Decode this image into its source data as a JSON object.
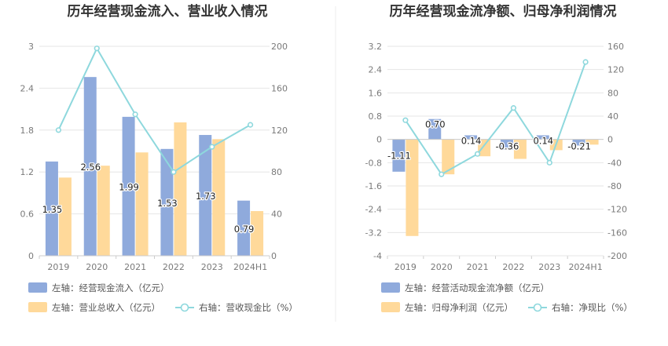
{
  "panels": [
    {
      "title": "历年经营现金流入、营业收入情况",
      "legend": [
        {
          "label": "左轴：经营现金流入（亿元）",
          "kind": "bar",
          "color": "#8faadc"
        },
        {
          "label": "左轴：营业总收入（亿元）",
          "kind": "bar",
          "color": "#ffd99a"
        },
        {
          "label": "右轴：营收现金比（%）",
          "kind": "line",
          "color": "#8ed8dd"
        }
      ]
    },
    {
      "title": "历年经营现金流净额、归母净利润情况",
      "legend": [
        {
          "label": "左轴：经营活动现金流净额（亿元）",
          "kind": "bar",
          "color": "#8faadc"
        },
        {
          "label": "左轴：归母净利润（亿元）",
          "kind": "bar",
          "color": "#ffd99a"
        },
        {
          "label": "右轴：净现比（%）",
          "kind": "line",
          "color": "#8ed8dd"
        }
      ]
    }
  ],
  "chart_data": [
    {
      "type": "bar",
      "title": "历年经营现金流入、营业收入情况",
      "categories": [
        "2019",
        "2020",
        "2021",
        "2022",
        "2023",
        "2024H1"
      ],
      "left_axis": {
        "ticks": [
          "0",
          "0.6",
          "1.2",
          "1.8",
          "2.4",
          "3"
        ],
        "ylim": [
          0,
          3
        ]
      },
      "right_axis": {
        "ticks": [
          "0",
          "40",
          "80",
          "120",
          "160",
          "200"
        ],
        "ylim": [
          0,
          200
        ]
      },
      "series": [
        {
          "name": "左轴：经营现金流入（亿元）",
          "axis": "left",
          "type": "bar",
          "color": "#8faadc",
          "values": [
            1.35,
            2.56,
            1.99,
            1.53,
            1.73,
            0.79
          ],
          "labels": [
            "1.35",
            "2.56",
            "1.99",
            "1.53",
            "1.73",
            "0.79"
          ]
        },
        {
          "name": "左轴：营业总收入（亿元）",
          "axis": "left",
          "type": "bar",
          "color": "#ffd99a",
          "values": [
            1.12,
            1.29,
            1.48,
            1.91,
            1.67,
            0.64
          ]
        },
        {
          "name": "右轴：营收现金比（%）",
          "axis": "right",
          "type": "line",
          "color": "#8ed8dd",
          "values": [
            120,
            198,
            135,
            80,
            104,
            125
          ]
        }
      ]
    },
    {
      "type": "bar",
      "title": "历年经营现金流净额、归母净利润情况",
      "categories": [
        "2019",
        "2020",
        "2021",
        "2022",
        "2023",
        "2024H1"
      ],
      "left_axis": {
        "ticks": [
          "-4",
          "-3.2",
          "-2.4",
          "-1.6",
          "-0.8",
          "0",
          "0.8",
          "1.6",
          "2.4",
          "3.2"
        ],
        "ylim": [
          -4,
          3.2
        ]
      },
      "right_axis": {
        "ticks": [
          "-200",
          "-160",
          "-120",
          "-80",
          "-40",
          "0",
          "40",
          "80",
          "120",
          "160"
        ],
        "ylim": [
          -200,
          160
        ]
      },
      "series": [
        {
          "name": "左轴：经营活动现金流净额（亿元）",
          "axis": "left",
          "type": "bar",
          "color": "#8faadc",
          "values": [
            -1.11,
            0.7,
            0.14,
            -0.36,
            0.14,
            -0.21
          ],
          "labels": [
            "-1.11",
            "0.70",
            "0.14",
            "-0.36",
            "0.14",
            "-0.21"
          ]
        },
        {
          "name": "左轴：归母净利润（亿元）",
          "axis": "left",
          "type": "bar",
          "color": "#ffd99a",
          "values": [
            -3.32,
            -1.2,
            -0.58,
            -0.67,
            -0.37,
            -0.18
          ]
        },
        {
          "name": "右轴：净现比（%）",
          "axis": "right",
          "type": "line",
          "color": "#8ed8dd",
          "values": [
            33,
            -60,
            -25,
            54,
            -40,
            133
          ]
        }
      ]
    }
  ]
}
